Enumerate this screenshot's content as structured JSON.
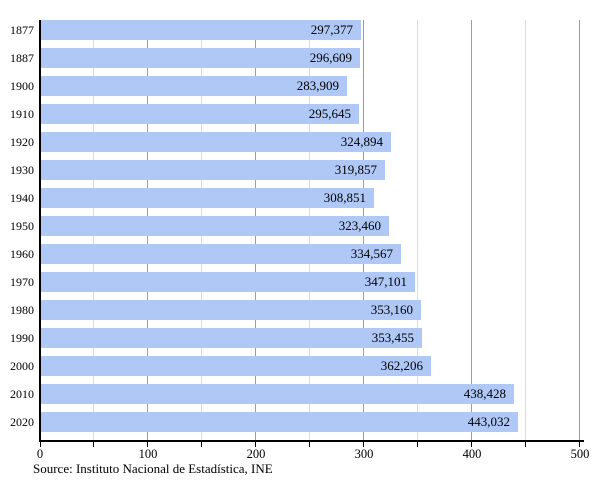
{
  "chart_data": {
    "type": "bar",
    "orientation": "horizontal",
    "title": "",
    "categories": [
      "1877",
      "1887",
      "1900",
      "1910",
      "1920",
      "1930",
      "1940",
      "1950",
      "1960",
      "1970",
      "1980",
      "1990",
      "2000",
      "2010",
      "2020"
    ],
    "values": [
      297377,
      296609,
      283909,
      295645,
      324894,
      319857,
      308851,
      323460,
      334567,
      347101,
      353160,
      353455,
      362206,
      438428,
      443032
    ],
    "value_labels": [
      "297,377",
      "296,609",
      "283,909",
      "295,645",
      "324,894",
      "319,857",
      "308,851",
      "323,460",
      "334,567",
      "347,101",
      "353,160",
      "353,455",
      "362,206",
      "438,428",
      "443,032"
    ],
    "xlabel": "",
    "ylabel": "",
    "xlim": [
      0,
      500
    ],
    "x_tick_labels": [
      "0",
      "100",
      "200",
      "300",
      "400",
      "500"
    ],
    "x_tick_values": [
      0,
      100,
      200,
      300,
      400,
      500
    ],
    "x_minor_step": 50,
    "x_units": "thousands",
    "grid": "vertical minor every 50, major every 100",
    "legend": "none",
    "source": "Source: Instituto Nacional de Estadística, INE",
    "colors": {
      "bar_fill": "#afc8f5",
      "major_gridline": "#9c9c9c",
      "minor_gridline": "#dcdcdc",
      "axis": "#000000",
      "text": "#000000",
      "background": "#ffffff"
    }
  }
}
